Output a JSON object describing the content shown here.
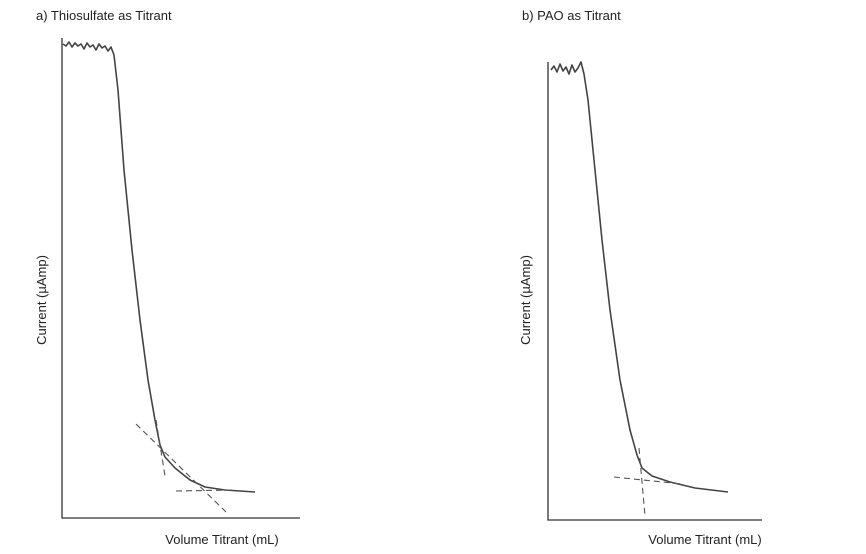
{
  "panels": [
    {
      "title": "a)  Thiosulfate as Titrant",
      "y_label": "Current (µAmp)",
      "x_label": "Volume Titrant (mL)"
    },
    {
      "title": "b)  PAO as Titrant",
      "y_label": "Current (µAmp)",
      "x_label": "Volume Titrant (mL)"
    }
  ]
}
